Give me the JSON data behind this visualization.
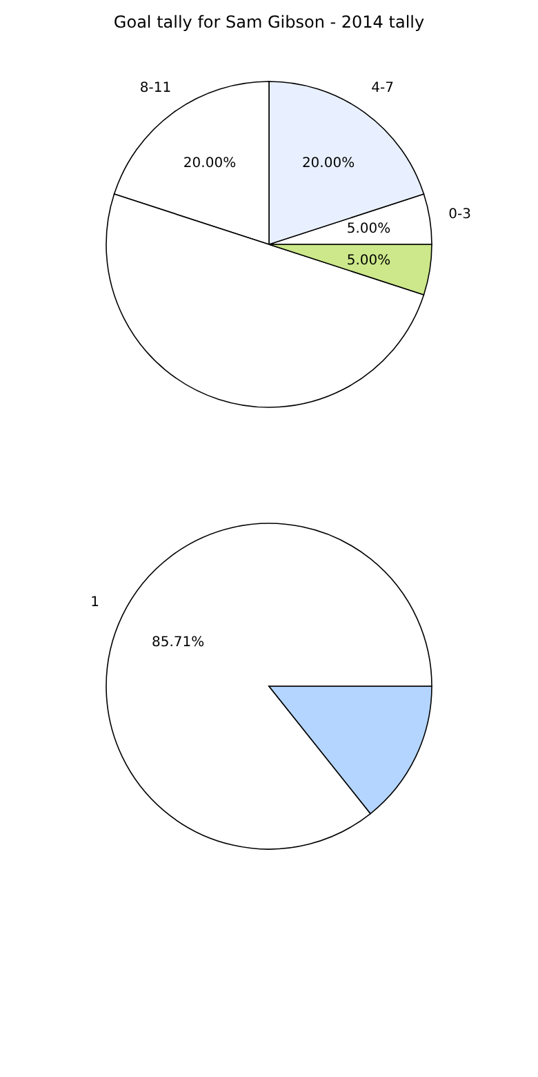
{
  "chart_data": [
    {
      "type": "pie",
      "title": "Goal tally for Sam Gibson - 2014 tally",
      "categories": [
        "0-3",
        "4-7",
        "8-11",
        null,
        null
      ],
      "values": [
        5,
        20,
        20,
        50,
        5
      ],
      "value_labels": [
        "5.00%",
        "20.00%",
        "20.00%",
        null,
        "5.00%"
      ],
      "colors": [
        "#ffffff",
        "#e8f0ff",
        "#ffffff",
        "#ffffff",
        "#cce88a"
      ]
    },
    {
      "type": "pie",
      "categories": [
        "1",
        null
      ],
      "values": [
        85.71,
        14.29
      ],
      "value_labels": [
        "85.71%",
        null
      ],
      "colors": [
        "#ffffff",
        "#b3d5ff"
      ]
    }
  ]
}
